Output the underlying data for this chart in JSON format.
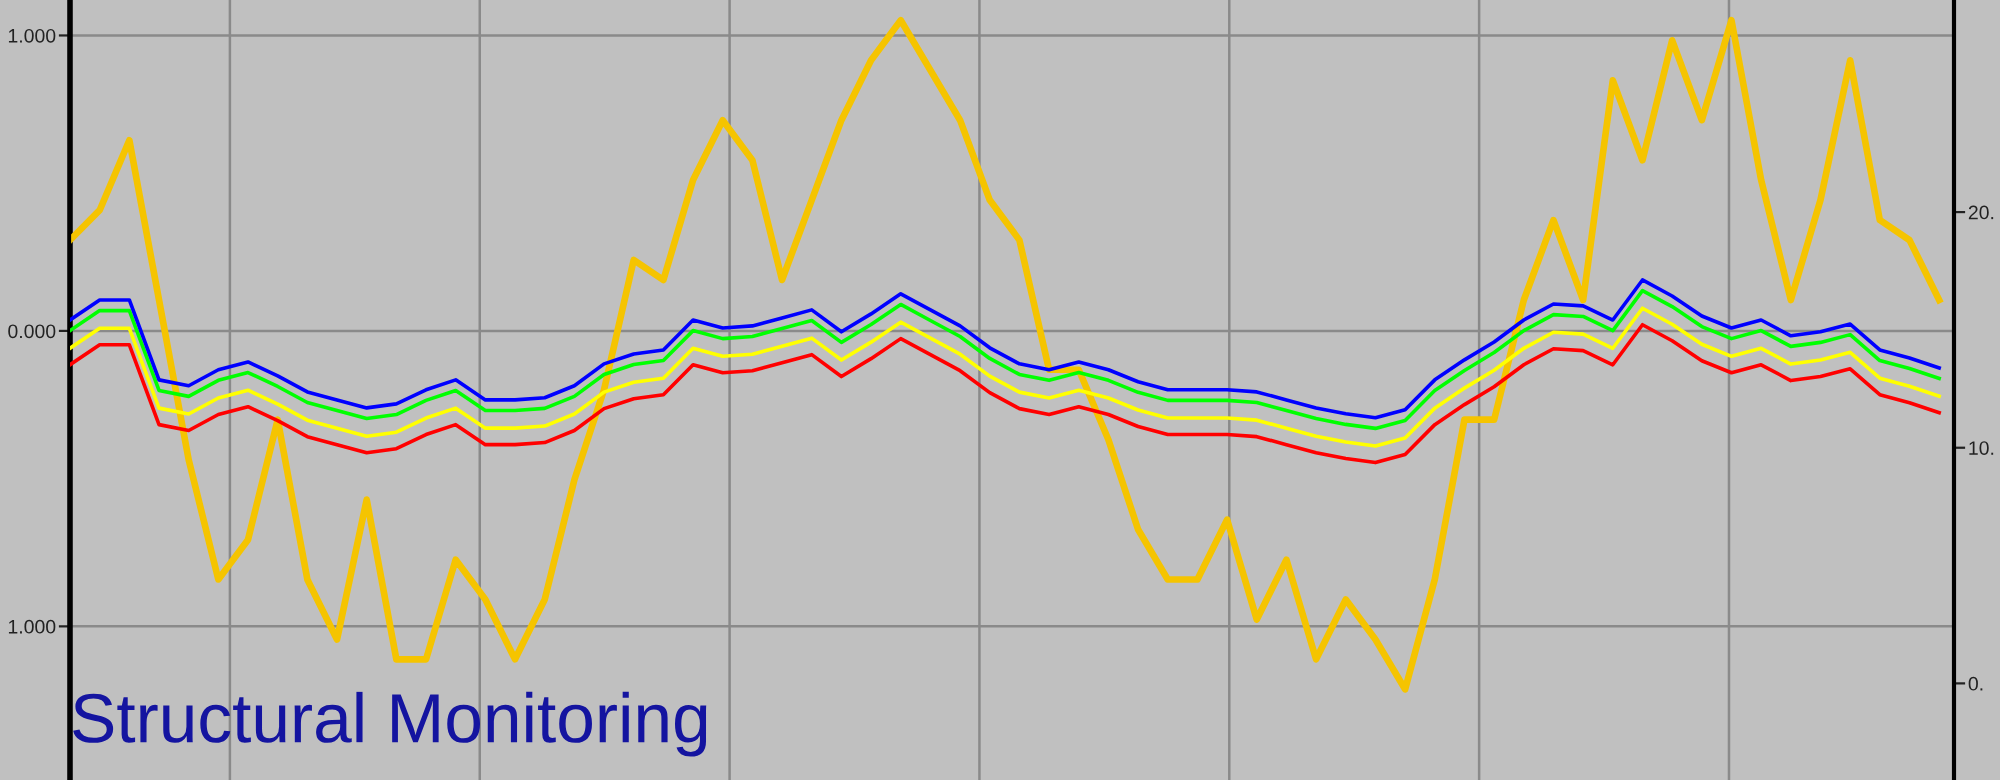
{
  "chart_data": {
    "type": "line",
    "title": "Structural Monitoring",
    "categories": [
      null,
      null,
      null,
      null,
      null,
      null,
      null,
      null,
      null,
      null,
      null,
      null,
      null,
      null,
      null,
      null,
      null,
      null,
      null,
      null,
      null,
      null,
      null,
      null,
      null,
      null,
      null,
      null,
      null,
      null,
      null,
      null,
      null,
      null,
      null,
      null,
      null,
      null,
      null,
      null,
      null,
      null,
      null,
      null,
      null,
      null,
      null,
      null,
      null,
      null,
      null,
      null,
      null,
      null,
      null,
      null,
      null,
      null,
      null,
      null,
      null,
      null,
      null,
      null
    ],
    "ylim": [
      -1.52,
      1.12
    ],
    "yticks": [
      {
        "value": 1,
        "label": "1.000"
      },
      {
        "value": 0,
        "label": "0.000"
      },
      {
        "value": -1,
        "label": "1.000"
      }
    ],
    "y2lim": [
      -4.1,
      29
    ],
    "y2ticks": [
      {
        "value": 20,
        "label": "20."
      },
      {
        "value": 10,
        "label": "10."
      },
      {
        "value": 0,
        "label": "0."
      }
    ],
    "grid": true,
    "marker": "none",
    "line_style": "solid",
    "series": [
      {
        "color": "#f5c400",
        "axis": "y2",
        "values": [
          18.81,
          20.08,
          23.05,
          16.27,
          9.49,
          4.41,
          6.1,
          11.19,
          4.41,
          1.86,
          7.8,
          1.02,
          1.02,
          5.25,
          3.56,
          1.02,
          3.56,
          8.64,
          12.46,
          17.97,
          17.12,
          21.36,
          23.9,
          22.2,
          17.12,
          20.51,
          23.9,
          26.44,
          28.14,
          26.02,
          23.9,
          20.51,
          18.81,
          13.31,
          13.31,
          10.34,
          6.53,
          4.41,
          4.41,
          6.95,
          2.71,
          5.25,
          1.02,
          3.56,
          1.86,
          -0.25,
          4.41,
          11.19,
          11.19,
          16.27,
          19.66,
          16.27,
          25.59,
          22.2,
          27.29,
          23.9,
          28.14,
          21.36,
          16.27,
          20.51,
          26.44,
          19.66,
          18.81,
          16.27
        ]
      },
      {
        "color": "#ff0000",
        "axis": "y2",
        "values": [
          13.52,
          14.37,
          14.37,
          10.98,
          10.73,
          11.41,
          11.74,
          11.15,
          10.47,
          10.13,
          9.79,
          9.96,
          10.56,
          10.98,
          10.13,
          10.13,
          10.22,
          10.73,
          11.66,
          12.08,
          12.25,
          13.52,
          13.18,
          13.27,
          13.61,
          13.95,
          13.02,
          13.78,
          14.63,
          13.95,
          13.27,
          12.34,
          11.66,
          11.41,
          11.74,
          11.41,
          10.9,
          10.56,
          10.56,
          10.56,
          10.47,
          10.13,
          9.79,
          9.54,
          9.37,
          9.71,
          10.98,
          11.83,
          12.59,
          13.52,
          14.2,
          14.12,
          13.52,
          15.22,
          14.54,
          13.69,
          13.18,
          13.52,
          12.85,
          13.02,
          13.35,
          12.25,
          11.91,
          11.49
        ]
      },
      {
        "color": "#ffff00",
        "axis": "y2",
        "values": [
          14.22,
          15.07,
          15.07,
          11.68,
          11.43,
          12.11,
          12.44,
          11.85,
          11.17,
          10.83,
          10.49,
          10.66,
          11.26,
          11.68,
          10.83,
          10.83,
          10.92,
          11.43,
          12.36,
          12.78,
          12.95,
          14.22,
          13.88,
          13.97,
          14.31,
          14.65,
          13.72,
          14.48,
          15.33,
          14.65,
          13.97,
          13.04,
          12.36,
          12.11,
          12.44,
          12.11,
          11.6,
          11.26,
          11.26,
          11.26,
          11.17,
          10.83,
          10.49,
          10.24,
          10.07,
          10.41,
          11.68,
          12.53,
          13.29,
          14.22,
          14.9,
          14.82,
          14.22,
          15.92,
          15.24,
          14.39,
          13.88,
          14.22,
          13.55,
          13.72,
          14.05,
          12.95,
          12.61,
          12.19
        ]
      },
      {
        "color": "#00ff00",
        "axis": "y2",
        "values": [
          14.97,
          15.82,
          15.82,
          12.43,
          12.18,
          12.86,
          13.19,
          12.6,
          11.92,
          11.58,
          11.24,
          11.41,
          12.01,
          12.43,
          11.58,
          11.58,
          11.67,
          12.18,
          13.11,
          13.53,
          13.7,
          14.97,
          14.63,
          14.72,
          15.06,
          15.4,
          14.47,
          15.23,
          16.08,
          15.4,
          14.72,
          13.79,
          13.11,
          12.86,
          13.19,
          12.86,
          12.35,
          12.01,
          12.01,
          12.01,
          11.92,
          11.58,
          11.24,
          10.99,
          10.82,
          11.16,
          12.43,
          13.28,
          14.04,
          14.97,
          15.65,
          15.57,
          14.97,
          16.67,
          15.99,
          15.14,
          14.63,
          14.97,
          14.3,
          14.47,
          14.8,
          13.7,
          13.36,
          12.94
        ]
      },
      {
        "color": "#0000ff",
        "axis": "y2",
        "values": [
          15.42,
          16.27,
          16.27,
          12.88,
          12.63,
          13.31,
          13.64,
          13.05,
          12.37,
          12.03,
          11.69,
          11.86,
          12.46,
          12.88,
          12.03,
          12.03,
          12.12,
          12.63,
          13.56,
          13.98,
          14.15,
          15.42,
          15.08,
          15.17,
          15.51,
          15.85,
          14.92,
          15.68,
          16.53,
          15.85,
          15.17,
          14.24,
          13.56,
          13.31,
          13.64,
          13.31,
          12.8,
          12.46,
          12.46,
          12.46,
          12.37,
          12.03,
          11.69,
          11.44,
          11.27,
          11.61,
          12.88,
          13.73,
          14.49,
          15.42,
          16.1,
          16.02,
          15.42,
          17.12,
          16.44,
          15.59,
          15.08,
          15.42,
          14.75,
          14.92,
          15.25,
          14.15,
          13.81,
          13.39
        ]
      }
    ]
  }
}
